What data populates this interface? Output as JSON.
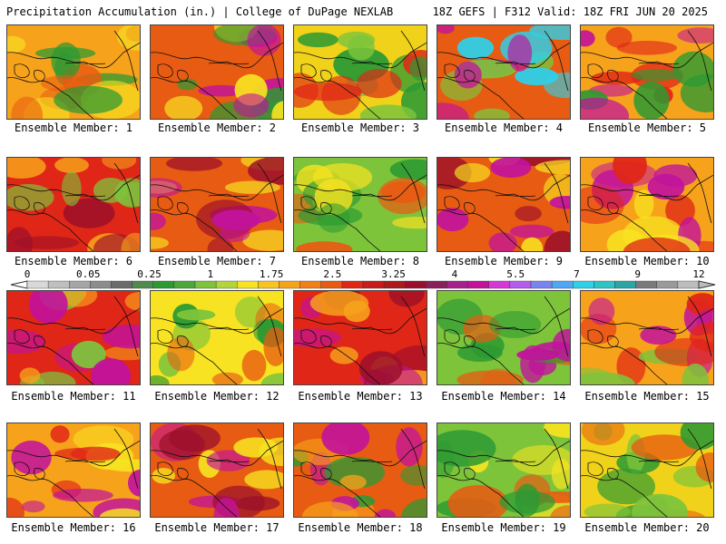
{
  "header": {
    "left": "Precipitation Accumulation (in.) | College of DuPage NEXLAB",
    "right": "18Z GEFS | F312 Valid: 18Z FRI JUN 20 2025"
  },
  "caption_prefix": "Ensemble Member: ",
  "members": [
    {
      "id": 1,
      "label": "Ensemble Member: 1",
      "base": "#f7a21b",
      "accents": [
        "#2c9a33",
        "#e85b12",
        "#f7e321"
      ]
    },
    {
      "id": 2,
      "label": "Ensemble Member: 2",
      "base": "#e85b12",
      "accents": [
        "#2c9a33",
        "#c2129c",
        "#f7e321"
      ]
    },
    {
      "id": 3,
      "label": "Ensemble Member: 3",
      "base": "#f0d21a",
      "accents": [
        "#2c9a33",
        "#e02617",
        "#7dc43b"
      ]
    },
    {
      "id": 4,
      "label": "Ensemble Member: 4",
      "base": "#e85b12",
      "accents": [
        "#c2129c",
        "#2fd0e8",
        "#7dc43b"
      ]
    },
    {
      "id": 5,
      "label": "Ensemble Member: 5",
      "base": "#f7a21b",
      "accents": [
        "#e02617",
        "#2c9a33",
        "#c2129c"
      ]
    },
    {
      "id": 6,
      "label": "Ensemble Member: 6",
      "base": "#e02617",
      "accents": [
        "#f7a21b",
        "#7dc43b",
        "#9b0f2a"
      ]
    },
    {
      "id": 7,
      "label": "Ensemble Member: 7",
      "base": "#e85b12",
      "accents": [
        "#c2129c",
        "#f7e321",
        "#9b0f2a"
      ]
    },
    {
      "id": 8,
      "label": "Ensemble Member: 8",
      "base": "#7dc43b",
      "accents": [
        "#2c9a33",
        "#f7e321",
        "#e85b12"
      ]
    },
    {
      "id": 9,
      "label": "Ensemble Member: 9",
      "base": "#e85b12",
      "accents": [
        "#c2129c",
        "#f7e321",
        "#9b0f2a"
      ]
    },
    {
      "id": 10,
      "label": "Ensemble Member: 10",
      "base": "#f7a21b",
      "accents": [
        "#c2129c",
        "#e02617",
        "#f7e321"
      ]
    },
    {
      "id": 11,
      "label": "Ensemble Member: 11",
      "base": "#e02617",
      "accents": [
        "#c2129c",
        "#f7a21b",
        "#7dc43b"
      ]
    },
    {
      "id": 12,
      "label": "Ensemble Member: 12",
      "base": "#f7e321",
      "accents": [
        "#7dc43b",
        "#e85b12",
        "#2c9a33"
      ]
    },
    {
      "id": 13,
      "label": "Ensemble Member: 13",
      "base": "#e02617",
      "accents": [
        "#9b0f2a",
        "#f7a21b",
        "#c2129c"
      ]
    },
    {
      "id": 14,
      "label": "Ensemble Member: 14",
      "base": "#7dc43b",
      "accents": [
        "#2c9a33",
        "#c2129c",
        "#e85b12"
      ]
    },
    {
      "id": 15,
      "label": "Ensemble Member: 15",
      "base": "#f7a21b",
      "accents": [
        "#e02617",
        "#c2129c",
        "#7dc43b"
      ]
    },
    {
      "id": 16,
      "label": "Ensemble Member: 16",
      "base": "#f7a21b",
      "accents": [
        "#e02617",
        "#c2129c",
        "#f7e321"
      ]
    },
    {
      "id": 17,
      "label": "Ensemble Member: 17",
      "base": "#e85b12",
      "accents": [
        "#9b0f2a",
        "#f7e321",
        "#c2129c"
      ]
    },
    {
      "id": 18,
      "label": "Ensemble Member: 18",
      "base": "#e85b12",
      "accents": [
        "#2c9a33",
        "#c2129c",
        "#f7a21b"
      ]
    },
    {
      "id": 19,
      "label": "Ensemble Member: 19",
      "base": "#7dc43b",
      "accents": [
        "#2c9a33",
        "#f7e321",
        "#e85b12"
      ]
    },
    {
      "id": 20,
      "label": "Ensemble Member: 20",
      "base": "#f0d21a",
      "accents": [
        "#2c9a33",
        "#7dc43b",
        "#e85b12"
      ]
    }
  ],
  "colorbar": {
    "labels": [
      "0",
      "0.05",
      "0.25",
      "1",
      "1.75",
      "2.5",
      "3.25",
      "4",
      "5.5",
      "7",
      "9",
      "12"
    ],
    "colors": [
      "#d9d9d9",
      "#bfbfbf",
      "#a6a6a6",
      "#8c8c8c",
      "#6b6b6b",
      "#4f8a4f",
      "#2c9a33",
      "#4ca83a",
      "#7dc43b",
      "#b4d53a",
      "#f7e321",
      "#f7c51d",
      "#f7a21b",
      "#f27f17",
      "#e85b12",
      "#e02617",
      "#c81c1c",
      "#ad1a1a",
      "#9b0f2a",
      "#8a1f5a",
      "#a8208c",
      "#c2129c",
      "#d936d9",
      "#b45cf0",
      "#7a84f0",
      "#4fa8f5",
      "#2fd0e8",
      "#2ec4c4",
      "#2aa6a6",
      "#7a7a7a",
      "#9a9a9a",
      "#bdbdbd"
    ]
  }
}
